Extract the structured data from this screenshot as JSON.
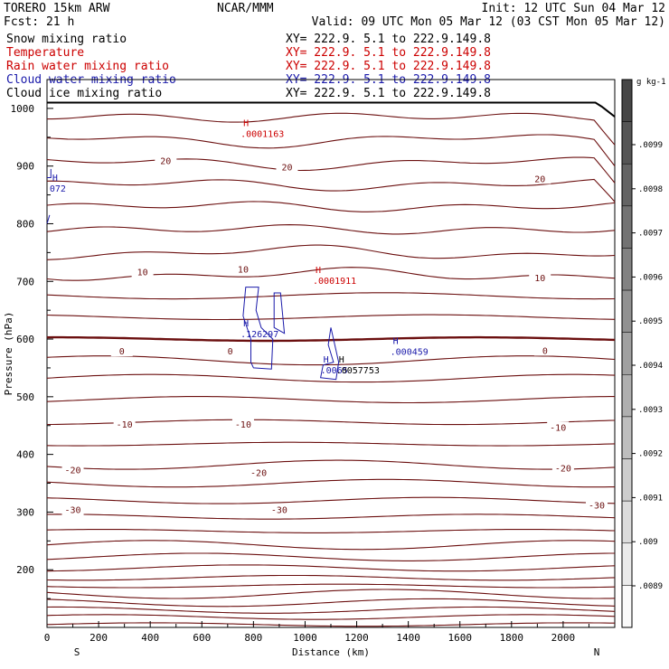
{
  "header": {
    "model": "TORERO  15km ARW",
    "center": "NCAR/MMM",
    "init": "Init: 12 UTC Sun 04 Mar 12",
    "fcst": "Fcst:    21 h",
    "valid": "Valid: 09 UTC Mon 05 Mar 12 (03 CST Mon 05 Mar 12)"
  },
  "fields": [
    {
      "name": "Snow mixing ratio",
      "xy": "XY= 222.9.  5.1 to 222.9.149.8",
      "color": "#000000"
    },
    {
      "name": "Temperature",
      "xy": "XY= 222.9.  5.1 to 222.9.149.8",
      "color": "#cc0000"
    },
    {
      "name": "Rain water mixing ratio",
      "xy": "XY= 222.9.  5.1 to 222.9.149.8",
      "color": "#cc0000"
    },
    {
      "name": "Cloud water mixing ratio",
      "xy": "XY= 222.9.  5.1 to 222.9.149.8",
      "color": "#1a1aaa"
    },
    {
      "name": "Cloud ice mixing ratio",
      "xy": "XY= 222.9.  5.1 to 222.9.149.8",
      "color": "#000000"
    }
  ],
  "colorbar": {
    "unit": "g kg-1",
    "labels": [
      ".0099",
      ".0098",
      ".0097",
      ".0096",
      ".0095",
      ".0094",
      ".0093",
      ".0092",
      ".0091",
      ".009",
      ".0089"
    ]
  },
  "chart_data": {
    "type": "line",
    "xlabel": "Distance (km)",
    "ylabel": "Pressure (hPa)",
    "xlim": [
      0,
      2200
    ],
    "ylim": [
      1050,
      100
    ],
    "x_ticks": [
      0,
      200,
      400,
      600,
      800,
      1000,
      1200,
      1400,
      1600,
      1800,
      2000
    ],
    "y_ticks": [
      200,
      300,
      400,
      500,
      600,
      700,
      800,
      900,
      1000
    ],
    "x_ends": {
      "left": "S",
      "right": "N"
    },
    "isotherm_pressures": [
      105,
      118,
      130,
      143,
      158,
      172,
      186,
      203,
      222,
      243,
      267,
      292,
      320,
      350,
      382,
      418,
      456,
      495,
      532,
      563,
      600,
      638,
      675,
      712,
      750,
      790,
      830,
      868,
      905,
      945,
      985
    ],
    "temperature_labels": [
      {
        "x": 100,
        "p": 303,
        "text": "-30"
      },
      {
        "x": 900,
        "p": 303,
        "text": "-30"
      },
      {
        "x": 2130,
        "p": 311,
        "text": "-30"
      },
      {
        "x": 100,
        "p": 372,
        "text": "-20"
      },
      {
        "x": 820,
        "p": 367,
        "text": "-20"
      },
      {
        "x": 2000,
        "p": 375,
        "text": "-20"
      },
      {
        "x": 300,
        "p": 451,
        "text": "-10"
      },
      {
        "x": 760,
        "p": 451,
        "text": "-10"
      },
      {
        "x": 1980,
        "p": 446,
        "text": "-10"
      },
      {
        "x": 290,
        "p": 578,
        "text": "0"
      },
      {
        "x": 710,
        "p": 578,
        "text": "0"
      },
      {
        "x": 1930,
        "p": 579,
        "text": "0"
      },
      {
        "x": 370,
        "p": 715,
        "text": "10"
      },
      {
        "x": 760,
        "p": 720,
        "text": "10"
      },
      {
        "x": 1910,
        "p": 705,
        "text": "10"
      },
      {
        "x": 460,
        "p": 908,
        "text": "20"
      },
      {
        "x": 930,
        "p": 897,
        "text": "20"
      },
      {
        "x": 1910,
        "p": 877,
        "text": "20"
      }
    ],
    "maxima": [
      {
        "x": 750,
        "p": 613,
        "text": ".126297",
        "field": "Cloud water mixing ratio",
        "color": "#1a1aaa"
      },
      {
        "x": 1060,
        "p": 550,
        "text": ".0065",
        "field": "Cloud water mixing ratio",
        "color": "#1a1aaa"
      },
      {
        "x": 1120,
        "p": 550,
        "text": ".0057753",
        "field": "Cloud ice mixing ratio",
        "color": "#000000"
      },
      {
        "x": 1330,
        "p": 582,
        "text": ".000459",
        "field": "Cloud water mixing ratio",
        "color": "#1a1aaa"
      },
      {
        "x": 1030,
        "p": 705,
        "text": ".0001911",
        "field": "Rain water mixing ratio",
        "color": "#cc0000"
      },
      {
        "x": 10,
        "p": 865,
        "text": "072",
        "field": "Cloud water mixing ratio",
        "color": "#1a1aaa"
      },
      {
        "x": 750,
        "p": 960,
        "text": ".0001163",
        "field": "Rain water mixing ratio",
        "color": "#cc0000"
      }
    ]
  }
}
